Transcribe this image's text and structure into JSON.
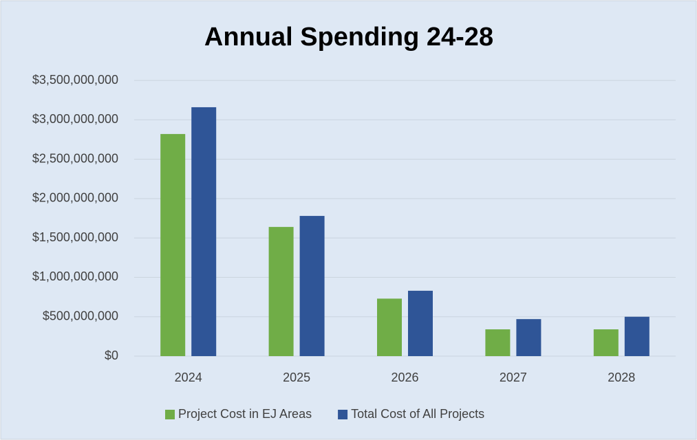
{
  "chart_data": {
    "type": "bar",
    "title": "Annual Spending 24-28",
    "categories": [
      "2024",
      "2025",
      "2026",
      "2027",
      "2028"
    ],
    "series": [
      {
        "name": "Project Cost in EJ Areas",
        "color": "#70ad47",
        "values": [
          2820000000,
          1640000000,
          730000000,
          340000000,
          340000000
        ]
      },
      {
        "name": "Total Cost of All Projects",
        "color": "#2f5597",
        "values": [
          3160000000,
          1780000000,
          830000000,
          470000000,
          500000000
        ]
      }
    ],
    "ylim": [
      0,
      3500000000
    ],
    "yticks": [
      {
        "value": 0,
        "label": "$0"
      },
      {
        "value": 500000000,
        "label": "$500,000,000"
      },
      {
        "value": 1000000000,
        "label": "$1,000,000,000"
      },
      {
        "value": 1500000000,
        "label": "$1,500,000,000"
      },
      {
        "value": 2000000000,
        "label": "$2,000,000,000"
      },
      {
        "value": 2500000000,
        "label": "$2,500,000,000"
      },
      {
        "value": 3000000000,
        "label": "$3,000,000,000"
      },
      {
        "value": 3500000000,
        "label": "$3,500,000,000"
      }
    ],
    "grid": true,
    "legend": "bottom"
  }
}
